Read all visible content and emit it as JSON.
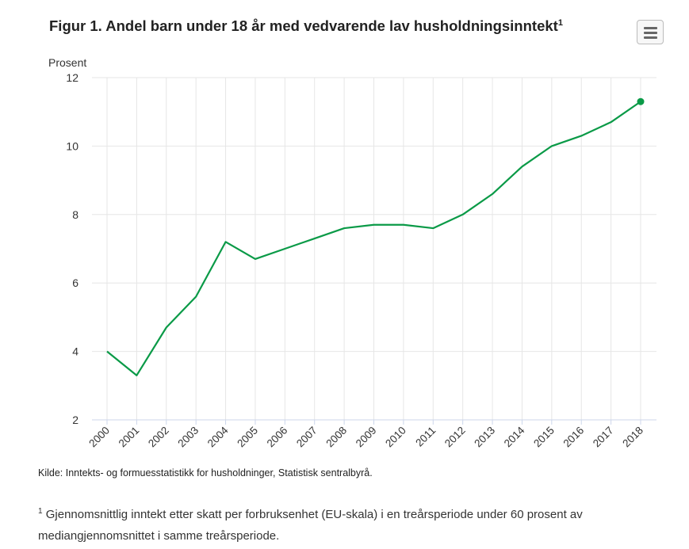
{
  "title": "Figur 1. Andel barn under 18 år med vedvarende lav husholdningsinntekt",
  "title_sup": "1",
  "menu_icon": "hamburger-menu-icon",
  "source": "Kilde: Inntekts- og formuesstatistikk for husholdninger, Statistisk sentralbyrå.",
  "footnote": {
    "marker": "1",
    "text": "Gjennomsnittlig inntekt etter skatt per forbruksenhet (EU-skala) i en treårsperiode under 60 prosent av mediangjennomsnittet i samme treårsperiode."
  },
  "chart_data": {
    "type": "line",
    "title": "Figur 1. Andel barn under 18 år med vedvarende lav husholdningsinntekt",
    "xlabel": "",
    "ylabel": "Prosent",
    "ylim": [
      2,
      12
    ],
    "yticks": [
      2,
      4,
      6,
      8,
      10,
      12
    ],
    "grid": true,
    "color": "#0a9a47",
    "x": [
      "2000",
      "2001",
      "2002",
      "2003",
      "2004",
      "2005",
      "2006",
      "2007",
      "2008",
      "2009",
      "2010",
      "2011",
      "2012",
      "2013",
      "2014",
      "2015",
      "2016",
      "2017",
      "2018"
    ],
    "series": [
      {
        "name": "Andel barn",
        "values": [
          4.0,
          3.3,
          4.7,
          5.6,
          7.2,
          6.7,
          7.0,
          7.3,
          7.6,
          7.7,
          7.7,
          7.6,
          8.0,
          8.6,
          9.4,
          10.0,
          10.3,
          10.7,
          11.3
        ]
      }
    ]
  }
}
